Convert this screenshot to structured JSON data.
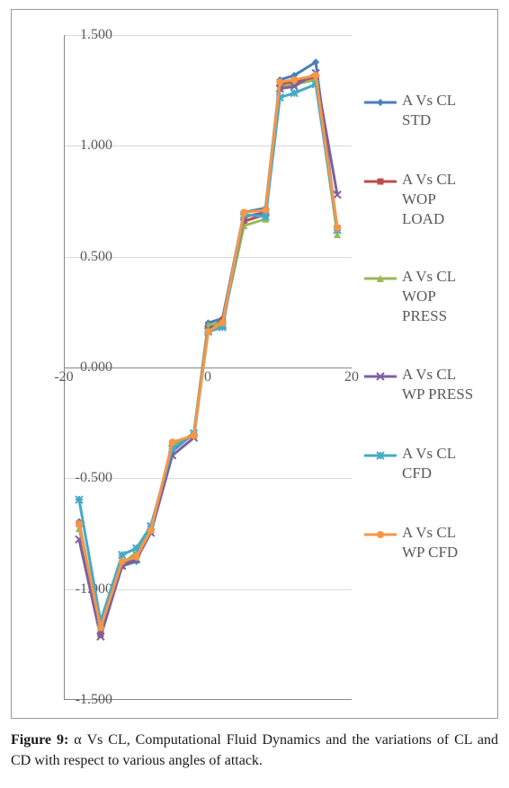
{
  "chart": {
    "type": "line",
    "background_color": "#ffffff",
    "grid_color": "#d9d9d9",
    "axis_color": "#888888",
    "tick_font_color": "#595959",
    "tick_font_size": 16,
    "xlim": [
      -20,
      20
    ],
    "ylim": [
      -1.5,
      1.5
    ],
    "xticks": [
      -20,
      0,
      20
    ],
    "yticks": [
      -1.5,
      -1.0,
      -0.5,
      0.0,
      0.5,
      1.0,
      1.5
    ],
    "ytick_labels": [
      "-1.500",
      "-1.000",
      "-0.500",
      "0.000",
      "0.500",
      "1.000",
      "1.500"
    ],
    "xtick_labels": [
      "-20",
      "0",
      "20"
    ],
    "x_values": [
      -18,
      -15,
      -12,
      -10,
      -8,
      -5,
      -2,
      0,
      2,
      5,
      8,
      10,
      12,
      15,
      18
    ],
    "series": [
      {
        "name": "A Vs CL\nSTD",
        "color": "#4a7ebb",
        "marker": "diamond",
        "line_width": 3,
        "marker_size": 8,
        "y": [
          -0.7,
          -1.2,
          -0.9,
          -0.88,
          -0.72,
          -0.38,
          -0.3,
          0.2,
          0.22,
          0.7,
          0.72,
          1.3,
          1.32,
          1.38,
          0.62
        ]
      },
      {
        "name": "A Vs CL\nWOP\nLOAD",
        "color": "#be4b48",
        "marker": "square",
        "line_width": 3,
        "marker_size": 7,
        "y": [
          -0.71,
          -1.21,
          -0.9,
          -0.85,
          -0.74,
          -0.35,
          -0.31,
          0.18,
          0.21,
          0.66,
          0.69,
          1.28,
          1.29,
          1.31,
          0.63
        ]
      },
      {
        "name": "A Vs CL\nWOP\nPRESS",
        "color": "#98b954",
        "marker": "triangle",
        "line_width": 3,
        "marker_size": 8,
        "y": [
          -0.73,
          -1.19,
          -0.89,
          -0.84,
          -0.73,
          -0.36,
          -0.3,
          0.19,
          0.2,
          0.64,
          0.67,
          1.27,
          1.28,
          1.3,
          0.6
        ]
      },
      {
        "name": "A Vs CL\nWP PRESS",
        "color": "#7d60a0",
        "marker": "cross",
        "line_width": 3,
        "marker_size": 8,
        "y": [
          -0.78,
          -1.22,
          -0.9,
          -0.87,
          -0.75,
          -0.4,
          -0.32,
          0.17,
          0.19,
          0.68,
          0.7,
          1.26,
          1.27,
          1.33,
          0.78
        ]
      },
      {
        "name": "A Vs CL\nCFD",
        "color": "#46aac5",
        "marker": "asterisk",
        "line_width": 3,
        "marker_size": 8,
        "y": [
          -0.6,
          -1.15,
          -0.85,
          -0.82,
          -0.72,
          -0.37,
          -0.3,
          0.16,
          0.18,
          0.69,
          0.68,
          1.22,
          1.24,
          1.28,
          0.62
        ]
      },
      {
        "name": "A Vs CL\nWP CFD",
        "color": "#f79646",
        "marker": "circle",
        "line_width": 3,
        "marker_size": 8,
        "y": [
          -0.71,
          -1.18,
          -0.88,
          -0.86,
          -0.74,
          -0.34,
          -0.31,
          0.16,
          0.2,
          0.7,
          0.71,
          1.29,
          1.3,
          1.32,
          0.63
        ]
      }
    ]
  },
  "caption": {
    "prefix": "Figure 9:",
    "text": " α Vs CL, Computational Fluid Dynamics and the variations of CL and CD with respect to various angles of attack."
  }
}
